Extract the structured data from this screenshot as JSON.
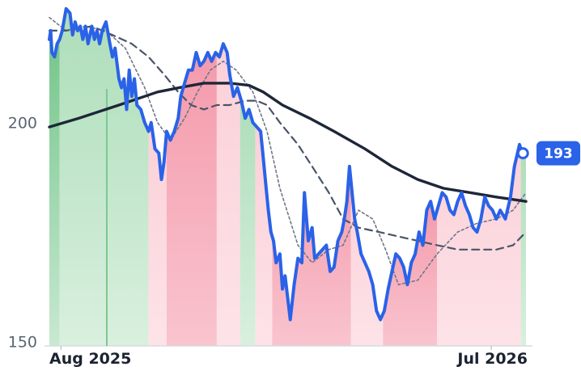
{
  "chart_data": {
    "type": "line",
    "x_start": "2025-07-23",
    "x_end": "2026-07-28",
    "ylim": [
      149,
      228
    ],
    "yticks": [
      150,
      200
    ],
    "xticks": [
      {
        "date": "2025-08-01",
        "label": "Aug 2025"
      },
      {
        "date": "2026-07-01",
        "label": "Jul 2026"
      }
    ],
    "last_value_label": "193",
    "colors": {
      "price": "#2a62e8",
      "long_ma": "#1e2638",
      "mid_ma": "#4a5468",
      "short_ma": "#6e7788",
      "up_zone": "#7cc891",
      "down_zone": "#f28ca0",
      "badge": "#2a62e8"
    },
    "zones": [
      {
        "start": "2025-07-23",
        "end": "2025-07-31",
        "trend": "up",
        "strength": "strong"
      },
      {
        "start": "2025-07-31",
        "end": "2025-10-08",
        "trend": "up",
        "strength": "weak"
      },
      {
        "start": "2025-10-08",
        "end": "2025-10-22",
        "trend": "down",
        "strength": "weak"
      },
      {
        "start": "2025-10-22",
        "end": "2025-11-30",
        "trend": "down",
        "strength": "strong"
      },
      {
        "start": "2025-11-30",
        "end": "2025-12-18",
        "trend": "down",
        "strength": "weak"
      },
      {
        "start": "2025-12-18",
        "end": "2025-12-30",
        "trend": "up",
        "strength": "weak"
      },
      {
        "start": "2025-12-30",
        "end": "2026-01-12",
        "trend": "down",
        "strength": "weak"
      },
      {
        "start": "2026-01-12",
        "end": "2026-03-14",
        "trend": "down",
        "strength": "strong"
      },
      {
        "start": "2026-03-14",
        "end": "2026-04-08",
        "trend": "down",
        "strength": "weak"
      },
      {
        "start": "2026-04-08",
        "end": "2026-05-20",
        "trend": "down",
        "strength": "strong"
      },
      {
        "start": "2026-05-20",
        "end": "2026-07-24",
        "trend": "down",
        "strength": "weak"
      },
      {
        "start": "2026-07-24",
        "end": "2026-07-28",
        "trend": "up",
        "strength": "weak"
      }
    ],
    "series": [
      {
        "role": "price",
        "points": [
          [
            "2025-07-23",
            219
          ],
          [
            "2025-07-24",
            221
          ],
          [
            "2025-07-25",
            216
          ],
          [
            "2025-07-27",
            215
          ],
          [
            "2025-07-29",
            218
          ],
          [
            "2025-07-31",
            219
          ],
          [
            "2025-08-02",
            221
          ],
          [
            "2025-08-05",
            226
          ],
          [
            "2025-08-08",
            225
          ],
          [
            "2025-08-10",
            220
          ],
          [
            "2025-08-12",
            223
          ],
          [
            "2025-08-14",
            221
          ],
          [
            "2025-08-16",
            222
          ],
          [
            "2025-08-18",
            219
          ],
          [
            "2025-08-20",
            222
          ],
          [
            "2025-08-22",
            218
          ],
          [
            "2025-08-25",
            222
          ],
          [
            "2025-08-27",
            219
          ],
          [
            "2025-08-29",
            221
          ],
          [
            "2025-08-31",
            218
          ],
          [
            "2025-09-02",
            221
          ],
          [
            "2025-09-05",
            223
          ],
          [
            "2025-09-08",
            218
          ],
          [
            "2025-09-10",
            215
          ],
          [
            "2025-09-12",
            217
          ],
          [
            "2025-09-15",
            210
          ],
          [
            "2025-09-17",
            208
          ],
          [
            "2025-09-19",
            210
          ],
          [
            "2025-09-21",
            203
          ],
          [
            "2025-09-23",
            212
          ],
          [
            "2025-09-25",
            206
          ],
          [
            "2025-09-27",
            210
          ],
          [
            "2025-09-29",
            204
          ],
          [
            "2025-10-02",
            203
          ],
          [
            "2025-10-05",
            200
          ],
          [
            "2025-10-08",
            198
          ],
          [
            "2025-10-10",
            200
          ],
          [
            "2025-10-13",
            194
          ],
          [
            "2025-10-16",
            193
          ],
          [
            "2025-10-18",
            187
          ],
          [
            "2025-10-20",
            191
          ],
          [
            "2025-10-22",
            198
          ],
          [
            "2025-10-25",
            196
          ],
          [
            "2025-10-28",
            198
          ],
          [
            "2025-10-31",
            201
          ],
          [
            "2025-11-02",
            206
          ],
          [
            "2025-11-05",
            209
          ],
          [
            "2025-11-08",
            212
          ],
          [
            "2025-11-11",
            212
          ],
          [
            "2025-11-14",
            216
          ],
          [
            "2025-11-17",
            213
          ],
          [
            "2025-11-20",
            214
          ],
          [
            "2025-11-23",
            216
          ],
          [
            "2025-11-26",
            214
          ],
          [
            "2025-11-29",
            216
          ],
          [
            "2025-12-02",
            215
          ],
          [
            "2025-12-05",
            218
          ],
          [
            "2025-12-08",
            216
          ],
          [
            "2025-12-10",
            211
          ],
          [
            "2025-12-13",
            206
          ],
          [
            "2025-12-16",
            208
          ],
          [
            "2025-12-19",
            205
          ],
          [
            "2025-12-22",
            201
          ],
          [
            "2025-12-25",
            203
          ],
          [
            "2025-12-28",
            200
          ],
          [
            "2025-12-31",
            199
          ],
          [
            "2026-01-03",
            198
          ],
          [
            "2026-01-05",
            192
          ],
          [
            "2026-01-07",
            186
          ],
          [
            "2026-01-09",
            180
          ],
          [
            "2026-01-11",
            175
          ],
          [
            "2026-01-13",
            173
          ],
          [
            "2026-01-15",
            168
          ],
          [
            "2026-01-18",
            170
          ],
          [
            "2026-01-20",
            162
          ],
          [
            "2026-01-22",
            165
          ],
          [
            "2026-01-24",
            160
          ],
          [
            "2026-01-26",
            155
          ],
          [
            "2026-01-29",
            163
          ],
          [
            "2026-02-01",
            169
          ],
          [
            "2026-02-04",
            168
          ],
          [
            "2026-02-06",
            184
          ],
          [
            "2026-02-09",
            173
          ],
          [
            "2026-02-12",
            176
          ],
          [
            "2026-02-14",
            169
          ],
          [
            "2026-02-17",
            170
          ],
          [
            "2026-02-20",
            171
          ],
          [
            "2026-02-23",
            172
          ],
          [
            "2026-02-26",
            166
          ],
          [
            "2026-03-01",
            167
          ],
          [
            "2026-03-04",
            173
          ],
          [
            "2026-03-07",
            175
          ],
          [
            "2026-03-09",
            178
          ],
          [
            "2026-03-11",
            182
          ],
          [
            "2026-03-13",
            190
          ],
          [
            "2026-03-15",
            184
          ],
          [
            "2026-03-17",
            178
          ],
          [
            "2026-03-19",
            175
          ],
          [
            "2026-03-22",
            170
          ],
          [
            "2026-03-25",
            168
          ],
          [
            "2026-03-28",
            166
          ],
          [
            "2026-03-31",
            163
          ],
          [
            "2026-04-03",
            157
          ],
          [
            "2026-04-06",
            155
          ],
          [
            "2026-04-09",
            157
          ],
          [
            "2026-04-12",
            162
          ],
          [
            "2026-04-15",
            166
          ],
          [
            "2026-04-18",
            170
          ],
          [
            "2026-04-21",
            169
          ],
          [
            "2026-04-24",
            167
          ],
          [
            "2026-04-27",
            163
          ],
          [
            "2026-04-30",
            168
          ],
          [
            "2026-05-03",
            170
          ],
          [
            "2026-05-06",
            175
          ],
          [
            "2026-05-09",
            172
          ],
          [
            "2026-05-12",
            180
          ],
          [
            "2026-05-15",
            182
          ],
          [
            "2026-05-18",
            178
          ],
          [
            "2026-05-21",
            181
          ],
          [
            "2026-05-24",
            184
          ],
          [
            "2026-05-27",
            183
          ],
          [
            "2026-05-30",
            180
          ],
          [
            "2026-06-02",
            179
          ],
          [
            "2026-06-05",
            182
          ],
          [
            "2026-06-08",
            184
          ],
          [
            "2026-06-11",
            181
          ],
          [
            "2026-06-14",
            179
          ],
          [
            "2026-06-17",
            176
          ],
          [
            "2026-06-20",
            175
          ],
          [
            "2026-06-23",
            178
          ],
          [
            "2026-06-26",
            183
          ],
          [
            "2026-06-29",
            181
          ],
          [
            "2026-07-02",
            180
          ],
          [
            "2026-07-05",
            178
          ],
          [
            "2026-07-08",
            180
          ],
          [
            "2026-07-12",
            178
          ],
          [
            "2026-07-16",
            183
          ],
          [
            "2026-07-19",
            190
          ],
          [
            "2026-07-23",
            195
          ],
          [
            "2026-07-25",
            193
          ]
        ]
      },
      {
        "role": "long_ma",
        "points": [
          [
            "2025-07-23",
            199
          ],
          [
            "2025-08-15",
            201
          ],
          [
            "2025-09-15",
            204
          ],
          [
            "2025-10-15",
            207
          ],
          [
            "2025-11-01",
            208
          ],
          [
            "2025-11-20",
            209
          ],
          [
            "2025-12-10",
            209
          ],
          [
            "2025-12-25",
            208.5
          ],
          [
            "2026-01-05",
            207
          ],
          [
            "2026-01-20",
            204
          ],
          [
            "2026-02-10",
            201
          ],
          [
            "2026-03-01",
            198
          ],
          [
            "2026-03-25",
            194
          ],
          [
            "2026-04-15",
            190
          ],
          [
            "2026-05-05",
            187
          ],
          [
            "2026-05-25",
            185
          ],
          [
            "2026-06-15",
            184
          ],
          [
            "2026-07-05",
            183
          ],
          [
            "2026-07-28",
            182
          ]
        ]
      },
      {
        "role": "mid_ma",
        "points": [
          [
            "2025-07-23",
            221
          ],
          [
            "2025-08-05",
            221
          ],
          [
            "2025-08-25",
            222
          ],
          [
            "2025-09-10",
            220
          ],
          [
            "2025-09-25",
            218
          ],
          [
            "2025-10-08",
            215
          ],
          [
            "2025-10-20",
            211
          ],
          [
            "2025-10-31",
            207
          ],
          [
            "2025-11-10",
            204
          ],
          [
            "2025-11-20",
            203
          ],
          [
            "2025-11-30",
            204
          ],
          [
            "2025-12-10",
            204
          ],
          [
            "2025-12-22",
            205
          ],
          [
            "2025-12-31",
            205
          ],
          [
            "2026-01-08",
            204
          ],
          [
            "2026-01-18",
            200
          ],
          [
            "2026-02-01",
            195
          ],
          [
            "2026-02-12",
            190
          ],
          [
            "2026-02-25",
            184
          ],
          [
            "2026-03-08",
            178
          ],
          [
            "2026-03-20",
            176
          ],
          [
            "2026-04-05",
            175
          ],
          [
            "2026-04-20",
            174
          ],
          [
            "2026-05-05",
            173
          ],
          [
            "2026-05-20",
            172
          ],
          [
            "2026-06-05",
            171
          ],
          [
            "2026-06-20",
            171
          ],
          [
            "2026-07-05",
            171
          ],
          [
            "2026-07-18",
            172
          ],
          [
            "2026-07-28",
            175
          ]
        ]
      },
      {
        "role": "short_ma",
        "points": [
          [
            "2025-07-23",
            224
          ],
          [
            "2025-08-05",
            221
          ],
          [
            "2025-08-20",
            222
          ],
          [
            "2025-09-05",
            221
          ],
          [
            "2025-09-20",
            217
          ],
          [
            "2025-10-05",
            208
          ],
          [
            "2025-10-15",
            200
          ],
          [
            "2025-10-25",
            196
          ],
          [
            "2025-11-05",
            201
          ],
          [
            "2025-11-15",
            207
          ],
          [
            "2025-11-25",
            212
          ],
          [
            "2025-12-05",
            214
          ],
          [
            "2025-12-15",
            212
          ],
          [
            "2025-12-28",
            207
          ],
          [
            "2026-01-08",
            198
          ],
          [
            "2026-01-18",
            185
          ],
          [
            "2026-02-01",
            172
          ],
          [
            "2026-02-12",
            168
          ],
          [
            "2026-02-25",
            171
          ],
          [
            "2026-03-08",
            172
          ],
          [
            "2026-03-20",
            180
          ],
          [
            "2026-03-31",
            178
          ],
          [
            "2026-04-10",
            171
          ],
          [
            "2026-04-20",
            163
          ],
          [
            "2026-05-05",
            164
          ],
          [
            "2026-05-20",
            170
          ],
          [
            "2026-06-05",
            175
          ],
          [
            "2026-06-20",
            177
          ],
          [
            "2026-07-05",
            178
          ],
          [
            "2026-07-18",
            180
          ],
          [
            "2026-07-28",
            184
          ]
        ]
      }
    ]
  }
}
